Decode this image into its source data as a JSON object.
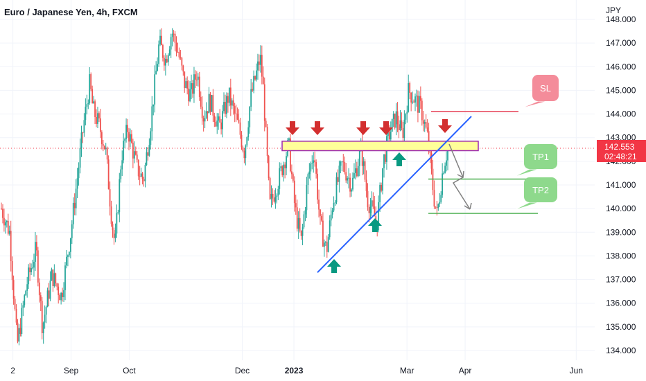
{
  "title": "Euro / Japanese Yen, 4h, FXCM",
  "chart_data": {
    "type": "candlestick",
    "title": "Euro / Japanese Yen, 4h, FXCM",
    "unit": "JPY",
    "ylim": [
      133.5,
      148.2
    ],
    "y_ticks": [
      "134.000",
      "135.000",
      "136.000",
      "137.000",
      "138.000",
      "139.000",
      "140.000",
      "141.000",
      "142.000",
      "143.000",
      "144.000",
      "145.000",
      "146.000",
      "147.000",
      "148.000"
    ],
    "x_ticks": [
      {
        "label": "2",
        "x": 0.02
      },
      {
        "label": "Sep",
        "x": 0.11
      },
      {
        "label": "Oct",
        "x": 0.2
      },
      {
        "label": "Dec",
        "x": 0.375
      },
      {
        "label": "2023",
        "x": 0.455
      },
      {
        "label": "Mar",
        "x": 0.63
      },
      {
        "label": "Apr",
        "x": 0.72
      },
      {
        "label": "Jun",
        "x": 0.892
      }
    ],
    "last_price": "142.553",
    "countdown": "02:48:21",
    "colors": {
      "up": "#26a69a",
      "down": "#ef5350",
      "last_price_bg": "#f23645",
      "level_line": "#e53950",
      "tp_line": "#4caf50",
      "trend_line": "#2962ff",
      "zone_fill": "#ffff99",
      "zone_stroke": "#9c27b0",
      "arrow_up": "#089981",
      "arrow_down": "#d32f2f",
      "arrow_grey": "#808080",
      "sl_bg": "#f48c9a",
      "tp_bg": "#8ed98c"
    },
    "anchors": [
      [
        0.0,
        140.0
      ],
      [
        0.013,
        139.0
      ],
      [
        0.025,
        134.2
      ],
      [
        0.04,
        136.8
      ],
      [
        0.055,
        138.3
      ],
      [
        0.065,
        135.0
      ],
      [
        0.08,
        137.2
      ],
      [
        0.095,
        136.3
      ],
      [
        0.11,
        139.0
      ],
      [
        0.13,
        143.5
      ],
      [
        0.14,
        145.3
      ],
      [
        0.145,
        144.2
      ],
      [
        0.155,
        143.5
      ],
      [
        0.165,
        142.5
      ],
      [
        0.175,
        139.5
      ],
      [
        0.18,
        138.4
      ],
      [
        0.19,
        142.2
      ],
      [
        0.2,
        143.4
      ],
      [
        0.215,
        141.7
      ],
      [
        0.225,
        141.2
      ],
      [
        0.235,
        143.3
      ],
      [
        0.25,
        147.0
      ],
      [
        0.26,
        146.3
      ],
      [
        0.27,
        147.5
      ],
      [
        0.28,
        146.6
      ],
      [
        0.29,
        145.3
      ],
      [
        0.3,
        144.8
      ],
      [
        0.31,
        145.8
      ],
      [
        0.32,
        143.9
      ],
      [
        0.33,
        144.6
      ],
      [
        0.345,
        143.4
      ],
      [
        0.36,
        144.8
      ],
      [
        0.375,
        143.5
      ],
      [
        0.385,
        142.4
      ],
      [
        0.395,
        144.7
      ],
      [
        0.41,
        146.4
      ],
      [
        0.415,
        145.0
      ],
      [
        0.425,
        140.1
      ],
      [
        0.44,
        141.3
      ],
      [
        0.455,
        142.7
      ],
      [
        0.465,
        140.0
      ],
      [
        0.475,
        138.6
      ],
      [
        0.485,
        141.2
      ],
      [
        0.495,
        142.5
      ],
      [
        0.505,
        139.3
      ],
      [
        0.515,
        138.2
      ],
      [
        0.525,
        140.3
      ],
      [
        0.54,
        141.9
      ],
      [
        0.555,
        141.0
      ],
      [
        0.57,
        142.5
      ],
      [
        0.58,
        140.4
      ],
      [
        0.595,
        139.4
      ],
      [
        0.605,
        142.0
      ],
      [
        0.615,
        143.2
      ],
      [
        0.625,
        143.9
      ],
      [
        0.635,
        143.1
      ],
      [
        0.645,
        145.0
      ],
      [
        0.655,
        144.6
      ],
      [
        0.665,
        144.2
      ],
      [
        0.675,
        143.0
      ],
      [
        0.685,
        140.5
      ],
      [
        0.69,
        139.7
      ],
      [
        0.7,
        141.8
      ],
      [
        0.707,
        142.55
      ]
    ],
    "annotations": {
      "resistance_zone": {
        "y_low": 142.45,
        "y_high": 142.85
      },
      "stop_loss": {
        "label": "SL",
        "price": 144.1
      },
      "take_profits": [
        {
          "label": "TP1",
          "price": 141.25
        },
        {
          "label": "TP2",
          "price": 139.8
        }
      ],
      "trend_line": {
        "from": [
          0.5,
          137.3
        ],
        "to": [
          0.745,
          143.9
        ]
      }
    }
  }
}
